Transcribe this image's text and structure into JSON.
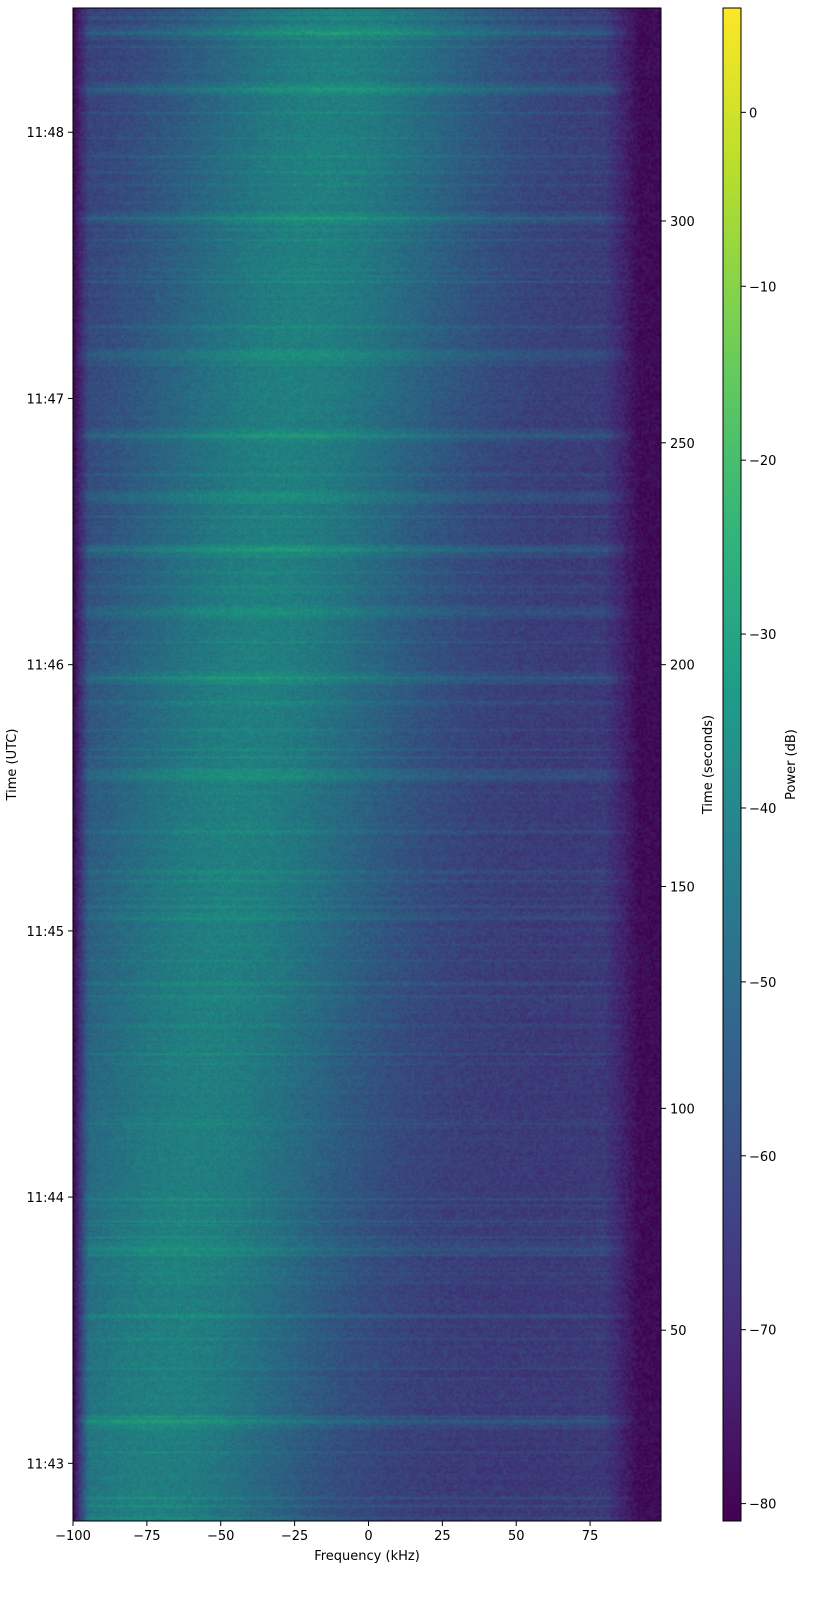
{
  "chart_data": {
    "type": "heatmap",
    "title": "",
    "xlabel": "Frequency (kHz)",
    "ylabel_left": "Time (UTC)",
    "ylabel_right": "Time (seconds)",
    "colorbar_label": "Power (dB)",
    "colormap": "viridis",
    "xlim": [
      -100,
      99
    ],
    "xticks": [
      -100,
      -75,
      -50,
      -25,
      0,
      25,
      50,
      75
    ],
    "xtick_labels": [
      "−100",
      "−75",
      "−50",
      "−25",
      "0",
      "25",
      "50",
      "75"
    ],
    "y_seconds_range": [
      7,
      348
    ],
    "right_yticks": [
      50,
      100,
      150,
      200,
      250,
      300
    ],
    "right_ytick_labels": [
      "50",
      "100",
      "150",
      "200",
      "250",
      "300"
    ],
    "left_yticks_seconds": [
      20,
      80,
      140,
      200,
      260,
      320
    ],
    "left_ytick_labels": [
      "11:43",
      "11:44",
      "11:45",
      "11:46",
      "11:47",
      "11:48"
    ],
    "color_range_db": [
      -81,
      6
    ],
    "colorbar_ticks": [
      -80,
      -70,
      -60,
      -50,
      -40,
      -30,
      -20,
      -10,
      0
    ],
    "colorbar_tick_labels": [
      "−80",
      "−70",
      "−60",
      "−50",
      "−40",
      "−30",
      "−20",
      "−10",
      "0"
    ],
    "viridis_stops": [
      "#440154",
      "#482878",
      "#3e4a89",
      "#31688e",
      "#26828e",
      "#1f9e89",
      "#35b779",
      "#6ece58",
      "#b5de2b",
      "#fde725"
    ],
    "signal_profile": {
      "description_values": "approximate power in dB of the band ridge",
      "noise_floor_db": -78,
      "ridge_peak_db": -38,
      "ridge_center_khz_at_start": -75,
      "ridge_center_khz_at_end": -10,
      "bright_rows_seconds": [
        5,
        29,
        68,
        175,
        197,
        212,
        226,
        238,
        252,
        270,
        301,
        330,
        343
      ]
    }
  }
}
